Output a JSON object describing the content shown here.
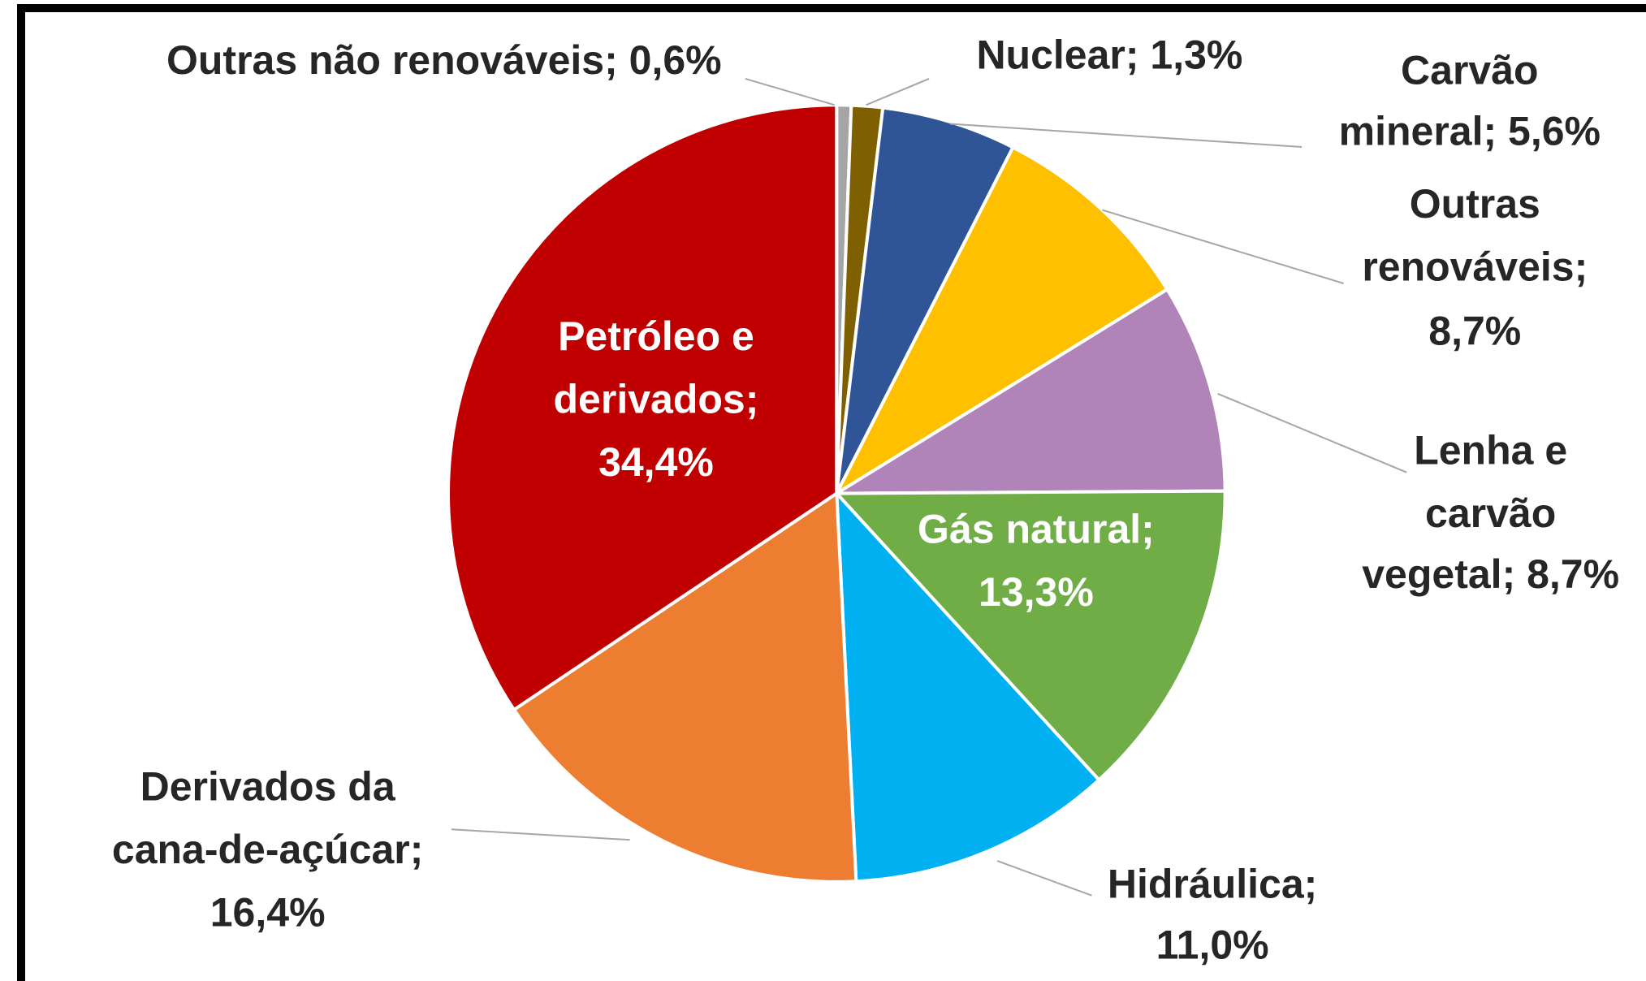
{
  "chart_data": {
    "type": "pie",
    "values": [
      0.6,
      1.3,
      5.6,
      8.7,
      8.7,
      13.3,
      11.0,
      16.4,
      34.4
    ],
    "value_labels": [
      [
        "Outras não renováveis; 0,6%"
      ],
      [
        "Nuclear; 1,3%"
      ],
      [
        "Carvão",
        "mineral; 5,6%"
      ],
      [
        "Outras",
        "renováveis;",
        "8,7%"
      ],
      [
        "Lenha e",
        "carvão",
        "vegetal; 8,7%"
      ],
      [
        "Gás natural;",
        "13,3%"
      ],
      [
        "Hidráulica;",
        "11,0%"
      ],
      [
        "Derivados da",
        "cana-de-açúcar;",
        "16,4%"
      ],
      [
        "Petróleo e",
        "derivados;",
        "34,4%"
      ]
    ],
    "colors": [
      "#a5a5a5",
      "#7f6000",
      "#2f5597",
      "#ffc000",
      "#b084b8",
      "#70ad47",
      "#00b0f0",
      "#ed7d31",
      "#c00000"
    ]
  }
}
